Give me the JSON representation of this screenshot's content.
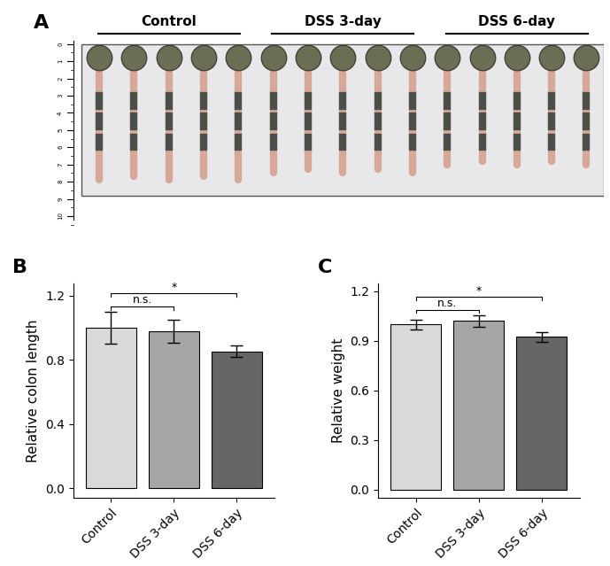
{
  "photo": {
    "panel_label": "A",
    "groups": [
      "Control",
      "DSS 3-day",
      "DSS 6-day"
    ],
    "n_per_group": 5,
    "ruler_ticks": [
      0,
      1,
      2,
      3,
      4,
      5,
      6,
      7,
      8,
      9,
      10
    ]
  },
  "chart_data": [
    {
      "type": "bar",
      "panel_label": "B",
      "y_label": "Relative colon length",
      "categories": [
        "Control",
        "DSS 3-day",
        "DSS 6-day"
      ],
      "values": [
        1.0,
        0.98,
        0.855
      ],
      "errors": [
        0.1,
        0.07,
        0.035
      ],
      "colors": [
        "#d9d9d9",
        "#a6a6a6",
        "#666666"
      ],
      "ylim": [
        -0.06,
        1.28
      ],
      "yticks": [
        {
          "value": 0,
          "label": "0.0"
        },
        0.4,
        0.8,
        1.2
      ],
      "annotations": [
        {
          "text": "n.s.",
          "between": [
            "Control",
            "DSS 3-day"
          ]
        },
        {
          "text": "*",
          "between": [
            "Control",
            "DSS 6-day"
          ]
        }
      ]
    },
    {
      "type": "bar",
      "panel_label": "C",
      "y_label": "Relative weight",
      "categories": [
        "Control",
        "DSS 3-day",
        "DSS 6-day"
      ],
      "values": [
        1.0,
        1.02,
        0.925
      ],
      "errors": [
        0.03,
        0.035,
        0.03
      ],
      "colors": [
        "#d9d9d9",
        "#a6a6a6",
        "#666666"
      ],
      "ylim": [
        -0.05,
        1.25
      ],
      "yticks": [
        {
          "value": 0,
          "label": "0.0"
        },
        0.3,
        0.6,
        0.9,
        1.2
      ],
      "annotations": [
        {
          "text": "n.s.",
          "between": [
            "Control",
            "DSS 3-day"
          ]
        },
        {
          "text": "*",
          "between": [
            "Control",
            "DSS 6-day"
          ]
        }
      ]
    }
  ]
}
